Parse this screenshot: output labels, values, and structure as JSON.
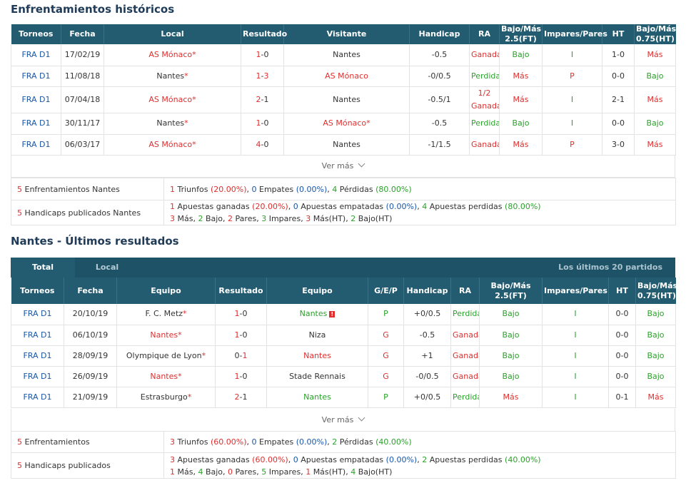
{
  "h2h": {
    "title": "Enfrentamientos históricos",
    "headers": {
      "torneos": "Torneos",
      "fecha": "Fecha",
      "local": "Local",
      "resultado": "Resultado",
      "visitante": "Visitante",
      "handicap": "Handicap",
      "ra": "RA",
      "bajomas": "Bajo/Más 2.5(FT)",
      "impares": "Impares/Pares",
      "ht": "HT",
      "bajomasht": "Bajo/Más 0.75(HT)"
    },
    "rows": [
      {
        "league": "FRA D1",
        "date": "17/02/19",
        "home": "AS Mónaco",
        "score_home": "1",
        "score_sep": "-",
        "score_away": "0",
        "away": "Nantes",
        "handicap": "-0.5",
        "ra": "Ganada",
        "ou": "Bajo",
        "oe": "I",
        "ht": "1-0",
        "ou_ht": "Más"
      },
      {
        "league": "FRA D1",
        "date": "11/08/18",
        "home": "Nantes",
        "score_home": "1",
        "score_sep": "-",
        "score_away": "3",
        "away": "AS Mónaco",
        "handicap": "-0/0.5",
        "ra": "Perdida",
        "ou": "Más",
        "oe": "P",
        "ht": "0-0",
        "ou_ht": "Bajo"
      },
      {
        "league": "FRA D1",
        "date": "07/04/18",
        "home": "AS Mónaco",
        "score_home": "2",
        "score_sep": "-",
        "score_away": "1",
        "away": "Nantes",
        "handicap": "-0.5/1",
        "ra": "1/2 Ganada",
        "ou": "Más",
        "oe": "I",
        "ht": "2-1",
        "ou_ht": "Más"
      },
      {
        "league": "FRA D1",
        "date": "30/11/17",
        "home": "Nantes",
        "score_home": "1",
        "score_sep": "-",
        "score_away": "0",
        "away": "AS Mónaco",
        "handicap": "-0.5",
        "ra": "Perdida",
        "ou": "Bajo",
        "oe": "I",
        "ht": "0-0",
        "ou_ht": "Bajo"
      },
      {
        "league": "FRA D1",
        "date": "06/03/17",
        "home": "AS Mónaco",
        "score_home": "4",
        "score_sep": "-",
        "score_away": "0",
        "away": "Nantes",
        "handicap": "-1/1.5",
        "ra": "Ganada",
        "ou": "Más",
        "oe": "P",
        "ht": "3-0",
        "ou_ht": "Más"
      }
    ],
    "star": "*",
    "ver_mas": "Ver más",
    "summary": {
      "row1_count": "5",
      "row1_label": "Enfrentamientos Nantes",
      "row1": {
        "wins_n": "1",
        "wins_l": "Triunfos",
        "wins_p": "(20.00%)",
        "draws_n": "0",
        "draws_l": "Empates",
        "draws_p": "(0.00%)",
        "loss_n": "4",
        "loss_l": "Pérdidas",
        "loss_p": "(80.00%)"
      },
      "row2_count": "5",
      "row2_label": "Handicaps publicados Nantes",
      "row2": {
        "won_n": "1",
        "won_l": "Apuestas ganadas",
        "won_p": "(20.00%)",
        "push_n": "0",
        "push_l": "Apuestas empatadas",
        "push_p": "(0.00%)",
        "lost_n": "4",
        "lost_l": "Apuestas perdidas",
        "lost_p": "(80.00%)",
        "mas_n": "3",
        "mas_l": "Más",
        "bajo_n": "2",
        "bajo_l": "Bajo",
        "pares_n": "2",
        "pares_l": "Pares",
        "imp_n": "3",
        "imp_l": "Impares",
        "masht_n": "3",
        "masht_l": "Más(HT)",
        "bajoht_n": "2",
        "bajoht_l": "Bajo(HT)"
      }
    }
  },
  "last": {
    "title": "Nantes - Últimos resultados",
    "tabs": {
      "total": "Total",
      "local": "Local",
      "right": "Los últimos 20 partidos"
    },
    "headers": {
      "torneos": "Torneos",
      "fecha": "Fecha",
      "equipo1": "Equipo",
      "resultado": "Resultado",
      "equipo2": "Equipo",
      "gep": "G/E/P",
      "handicap": "Handicap",
      "ra": "RA",
      "bajomas": "Bajo/Más 2.5(FT)",
      "impares": "Impares/Pares",
      "ht": "HT",
      "bajomasht": "Bajo/Más 0.75(HT)"
    },
    "rows": [
      {
        "league": "FRA D1",
        "date": "20/10/19",
        "home": "F. C. Metz",
        "score_home": "1",
        "score_sep": "-",
        "score_away": "0",
        "away": "Nantes",
        "gep": "P",
        "handicap": "+0/0.5",
        "ra": "Perdida",
        "ou": "Bajo",
        "oe": "I",
        "ht": "0-0",
        "ou_ht": "Bajo",
        "warn": "!"
      },
      {
        "league": "FRA D1",
        "date": "06/10/19",
        "home": "Nantes",
        "score_home": "1",
        "score_sep": "-",
        "score_away": "0",
        "away": "Niza",
        "gep": "G",
        "handicap": "-0.5",
        "ra": "Ganada",
        "ou": "Bajo",
        "oe": "I",
        "ht": "0-0",
        "ou_ht": "Bajo"
      },
      {
        "league": "FRA D1",
        "date": "28/09/19",
        "home": "Olympique de Lyon",
        "score_home": "0",
        "score_sep": "-",
        "score_away": "1",
        "away": "Nantes",
        "gep": "G",
        "handicap": "+1",
        "ra": "Ganada",
        "ou": "Bajo",
        "oe": "I",
        "ht": "0-0",
        "ou_ht": "Bajo"
      },
      {
        "league": "FRA D1",
        "date": "26/09/19",
        "home": "Nantes",
        "score_home": "1",
        "score_sep": "-",
        "score_away": "0",
        "away": "Stade Rennais",
        "gep": "G",
        "handicap": "-0/0.5",
        "ra": "Ganada",
        "ou": "Bajo",
        "oe": "I",
        "ht": "0-0",
        "ou_ht": "Bajo"
      },
      {
        "league": "FRA D1",
        "date": "21/09/19",
        "home": "Estrasburgo",
        "score_home": "2",
        "score_sep": "-",
        "score_away": "1",
        "away": "Nantes",
        "gep": "P",
        "handicap": "+0/0.5",
        "ra": "Perdida",
        "ou": "Más",
        "oe": "I",
        "ht": "0-1",
        "ou_ht": "Más"
      }
    ],
    "star": "*",
    "ver_mas": "Ver más",
    "summary": {
      "row1_count": "5",
      "row1_label": "Enfrentamientos",
      "row1": {
        "wins_n": "3",
        "wins_l": "Triunfos",
        "wins_p": "(60.00%)",
        "draws_n": "0",
        "draws_l": "Empates",
        "draws_p": "(0.00%)",
        "loss_n": "2",
        "loss_l": "Pérdidas",
        "loss_p": "(40.00%)"
      },
      "row2_count": "5",
      "row2_label": "Handicaps publicados",
      "row2": {
        "won_n": "3",
        "won_l": "Apuestas ganadas",
        "won_p": "(60.00%)",
        "push_n": "0",
        "push_l": "Apuestas empatadas",
        "push_p": "(0.00%)",
        "lost_n": "2",
        "lost_l": "Apuestas perdidas",
        "lost_p": "(40.00%)",
        "mas_n": "1",
        "mas_l": "Más",
        "bajo_n": "4",
        "bajo_l": "Bajo",
        "pares_n": "0",
        "pares_l": "Pares",
        "imp_n": "5",
        "imp_l": "Impares",
        "masht_n": "1",
        "masht_l": "Más(HT)",
        "bajoht_n": "4",
        "bajoht_l": "Bajo(HT)"
      }
    }
  },
  "colors": {
    "header_bg": "#235c70",
    "red": "#e02e2e",
    "green": "#2aa22a",
    "blue": "#1a57a8"
  }
}
